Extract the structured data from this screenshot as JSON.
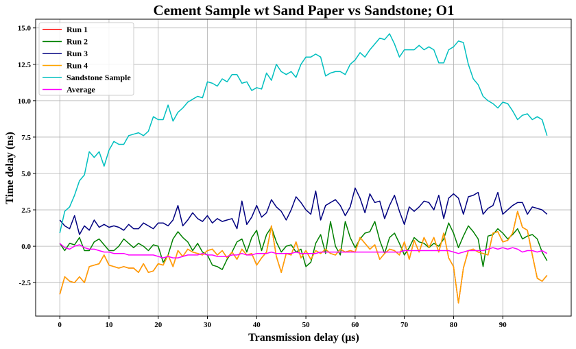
{
  "chart_data": {
    "type": "line",
    "title": "Cement Sample wt Sand Paper vs Sandstone; O1",
    "xlabel": "Transmission delay (μs)",
    "ylabel": "Time delay (ns)",
    "xlim": [
      -4.9,
      103.9
    ],
    "ylim": [
      -4.8,
      15.6
    ],
    "x_ticks": [
      0,
      10,
      20,
      30,
      40,
      50,
      60,
      70,
      80,
      90
    ],
    "y_ticks": [
      -2.5,
      0.0,
      2.5,
      5.0,
      7.5,
      10.0,
      12.5,
      15.0
    ],
    "x_tick_labels": [
      "0",
      "10",
      "20",
      "30",
      "40",
      "50",
      "60",
      "70",
      "80",
      "90"
    ],
    "y_tick_labels": [
      "-2.5",
      "0.0",
      "2.5",
      "5.0",
      "7.5",
      "10.0",
      "12.5",
      "15.0"
    ],
    "grid": true,
    "legend_position": "top-left",
    "series": [
      {
        "name": "Run 1",
        "color": "#ff0000",
        "x": [
          0,
          1,
          2,
          3,
          4,
          5,
          6,
          7,
          8,
          9,
          10,
          11,
          12,
          13,
          14,
          15,
          16,
          17,
          18,
          19,
          20,
          21,
          22,
          23,
          24,
          25,
          26,
          27,
          28,
          29,
          30,
          31,
          32,
          33,
          34,
          35,
          36,
          37,
          38,
          39,
          40,
          41,
          42,
          43,
          44,
          45,
          46,
          47,
          48,
          49,
          50,
          51,
          52,
          53,
          54,
          55,
          56,
          57,
          58,
          59,
          60,
          61,
          62,
          63,
          64,
          65,
          66,
          67,
          68,
          69,
          70,
          71,
          72,
          73,
          74,
          75,
          76,
          77,
          78,
          79,
          80,
          81,
          82,
          83,
          84,
          85,
          86,
          87,
          88,
          89,
          90,
          91,
          92,
          93,
          94,
          95,
          96,
          97,
          98,
          99
        ],
        "values": [
          -3.3,
          -2.1,
          -2.4,
          -2.5,
          -2.1,
          -2.5,
          -1.4,
          -1.3,
          -1.2,
          -0.6,
          -1.3,
          -1.4,
          -1.5,
          -1.4,
          -1.5,
          -1.5,
          -1.8,
          -1.2,
          -1.8,
          -1.7,
          -1.2,
          -1.3,
          -0.6,
          -1.4,
          -0.3,
          -0.7,
          -0.2,
          -0.4,
          -0.5,
          -0.6,
          -0.3,
          -0.2,
          -0.6,
          -0.3,
          -0.8,
          -0.4,
          -0.9,
          -0.2,
          -0.6,
          -0.5,
          -1.3,
          -0.8,
          -0.4,
          1.4,
          -0.7,
          -1.8,
          -0.5,
          -0.6,
          0.3,
          -0.8,
          -0.3,
          -0.9,
          -0.3,
          -0.5,
          -0.2,
          -0.5,
          -0.6,
          -0.2,
          -0.4,
          -0.3,
          -0.4,
          0.6,
          0.2,
          -0.2,
          0.1,
          -0.9,
          -0.5,
          -0.2,
          -0.3,
          -0.6,
          0.3,
          -0.9,
          0.4,
          -0.4,
          0.6,
          -0.1,
          0.6,
          -0.4,
          0.9,
          -0.8,
          -1.4,
          -3.9,
          -1.5,
          -0.3,
          -0.2,
          -0.4,
          -0.5,
          -0.6,
          0.9,
          1.0,
          0.3,
          0.4,
          0.9,
          2.4,
          1.3,
          1.1,
          -0.6,
          -2.2,
          -2.4,
          -2.0
        ]
      },
      {
        "name": "Run 2",
        "color": "#008000",
        "x": [
          0,
          1,
          2,
          3,
          4,
          5,
          6,
          7,
          8,
          9,
          10,
          11,
          12,
          13,
          14,
          15,
          16,
          17,
          18,
          19,
          20,
          21,
          22,
          23,
          24,
          25,
          26,
          27,
          28,
          29,
          30,
          31,
          32,
          33,
          34,
          35,
          36,
          37,
          38,
          39,
          40,
          41,
          42,
          43,
          44,
          45,
          46,
          47,
          48,
          49,
          50,
          51,
          52,
          53,
          54,
          55,
          56,
          57,
          58,
          59,
          60,
          61,
          62,
          63,
          64,
          65,
          66,
          67,
          68,
          69,
          70,
          71,
          72,
          73,
          74,
          75,
          76,
          77,
          78,
          79,
          80,
          81,
          82,
          83,
          84,
          85,
          86,
          87,
          88,
          89,
          90,
          91,
          92,
          93,
          94,
          95,
          96,
          97,
          98,
          99
        ],
        "values": [
          0.2,
          -0.3,
          0.2,
          0.1,
          0.6,
          -0.3,
          -0.3,
          0.3,
          0.5,
          0.1,
          -0.3,
          -0.3,
          0.0,
          0.5,
          0.2,
          -0.1,
          0.2,
          0.0,
          -0.3,
          0.1,
          0.0,
          -1.1,
          -0.6,
          0.5,
          1.0,
          0.6,
          0.3,
          -0.3,
          0.2,
          -0.4,
          -0.6,
          -1.3,
          -1.4,
          -1.6,
          -0.9,
          -0.4,
          0.3,
          0.5,
          -0.4,
          0.6,
          1.1,
          -0.3,
          0.8,
          1.3,
          0.3,
          -0.4,
          0.0,
          0.1,
          -0.4,
          -0.2,
          -1.4,
          -1.1,
          0.2,
          0.8,
          -0.5,
          1.7,
          0.0,
          -0.6,
          1.7,
          0.6,
          -0.1,
          0.5,
          0.9,
          1.0,
          1.7,
          0.4,
          -0.5,
          0.6,
          0.9,
          0.2,
          -0.6,
          -0.1,
          0.6,
          0.3,
          0.2,
          -0.1,
          0.2,
          0.0,
          0.5,
          1.6,
          0.9,
          -0.1,
          0.7,
          1.4,
          1.0,
          0.5,
          -1.4,
          0.7,
          0.8,
          1.2,
          0.9,
          0.5,
          0.8,
          1.2,
          0.5,
          0.7,
          0.8,
          0.5,
          -0.4,
          -1.0
        ]
      },
      {
        "name": "Run 3",
        "color": "#000080",
        "x": [
          0,
          1,
          2,
          3,
          4,
          5,
          6,
          7,
          8,
          9,
          10,
          11,
          12,
          13,
          14,
          15,
          16,
          17,
          18,
          19,
          20,
          21,
          22,
          23,
          24,
          25,
          26,
          27,
          28,
          29,
          30,
          31,
          32,
          33,
          34,
          35,
          36,
          37,
          38,
          39,
          40,
          41,
          42,
          43,
          44,
          45,
          46,
          47,
          48,
          49,
          50,
          51,
          52,
          53,
          54,
          55,
          56,
          57,
          58,
          59,
          60,
          61,
          62,
          63,
          64,
          65,
          66,
          67,
          68,
          69,
          70,
          71,
          72,
          73,
          74,
          75,
          76,
          77,
          78,
          79,
          80,
          81,
          82,
          83,
          84,
          85,
          86,
          87,
          88,
          89,
          90,
          91,
          92,
          93,
          94,
          95,
          96,
          97,
          98,
          99
        ],
        "values": [
          1.8,
          1.4,
          1.2,
          2.1,
          0.8,
          1.4,
          1.1,
          1.8,
          1.3,
          1.5,
          1.3,
          1.4,
          1.3,
          1.1,
          1.5,
          1.2,
          1.2,
          1.6,
          1.4,
          1.2,
          1.6,
          1.6,
          1.4,
          1.8,
          2.8,
          1.4,
          1.8,
          2.3,
          1.9,
          1.7,
          2.1,
          1.6,
          1.9,
          1.7,
          1.8,
          1.9,
          1.2,
          3.1,
          1.5,
          2.0,
          2.8,
          2.0,
          2.3,
          3.2,
          2.7,
          2.4,
          1.8,
          2.5,
          3.4,
          3.0,
          2.5,
          2.2,
          3.8,
          1.8,
          2.8,
          3.0,
          3.2,
          2.8,
          2.1,
          2.7,
          4.0,
          3.3,
          2.3,
          3.6,
          3.0,
          3.1,
          1.9,
          2.8,
          3.5,
          2.4,
          1.5,
          2.7,
          2.4,
          2.7,
          3.1,
          3.0,
          2.5,
          3.5,
          1.9,
          3.3,
          3.6,
          3.3,
          2.2,
          3.4,
          3.5,
          3.7,
          2.2,
          2.6,
          2.8,
          3.7,
          2.2,
          2.5,
          2.8,
          3.0,
          3.0,
          2.2,
          2.7,
          2.6,
          2.5,
          2.2
        ]
      },
      {
        "name": "Run 4",
        "color": "#ffa500",
        "x": [
          0,
          1,
          2,
          3,
          4,
          5,
          6,
          7,
          8,
          9,
          10,
          11,
          12,
          13,
          14,
          15,
          16,
          17,
          18,
          19,
          20,
          21,
          22,
          23,
          24,
          25,
          26,
          27,
          28,
          29,
          30,
          31,
          32,
          33,
          34,
          35,
          36,
          37,
          38,
          39,
          40,
          41,
          42,
          43,
          44,
          45,
          46,
          47,
          48,
          49,
          50,
          51,
          52,
          53,
          54,
          55,
          56,
          57,
          58,
          59,
          60,
          61,
          62,
          63,
          64,
          65,
          66,
          67,
          68,
          69,
          70,
          71,
          72,
          73,
          74,
          75,
          76,
          77,
          78,
          79,
          80,
          81,
          82,
          83,
          84,
          85,
          86,
          87,
          88,
          89,
          90,
          91,
          92,
          93,
          94,
          95,
          96,
          97,
          98,
          99
        ],
        "values": [
          -3.3,
          -2.1,
          -2.4,
          -2.5,
          -2.1,
          -2.5,
          -1.4,
          -1.3,
          -1.2,
          -0.6,
          -1.3,
          -1.4,
          -1.5,
          -1.4,
          -1.5,
          -1.5,
          -1.8,
          -1.2,
          -1.8,
          -1.7,
          -1.2,
          -1.3,
          -0.6,
          -1.4,
          -0.3,
          -0.7,
          -0.2,
          -0.4,
          -0.5,
          -0.6,
          -0.3,
          -0.2,
          -0.6,
          -0.3,
          -0.8,
          -0.4,
          -0.9,
          -0.2,
          -0.6,
          -0.5,
          -1.3,
          -0.8,
          -0.4,
          1.4,
          -0.7,
          -1.8,
          -0.5,
          -0.6,
          0.3,
          -0.8,
          -0.3,
          -0.9,
          -0.3,
          -0.5,
          -0.2,
          -0.5,
          -0.6,
          -0.2,
          -0.4,
          -0.3,
          -0.4,
          0.6,
          0.2,
          -0.2,
          0.1,
          -0.9,
          -0.5,
          -0.2,
          -0.3,
          -0.6,
          0.3,
          -0.9,
          0.4,
          -0.4,
          0.6,
          -0.1,
          0.6,
          -0.4,
          0.9,
          -0.8,
          -1.4,
          -3.9,
          -1.5,
          -0.3,
          -0.2,
          -0.4,
          -0.5,
          -0.6,
          0.9,
          1.0,
          0.3,
          0.4,
          0.9,
          2.4,
          1.3,
          1.1,
          -0.6,
          -2.2,
          -2.4,
          -2.0
        ]
      },
      {
        "name": "Sandstone Sample",
        "color": "#00bfbf",
        "x": [
          0,
          1,
          2,
          3,
          4,
          5,
          6,
          7,
          8,
          9,
          10,
          11,
          12,
          13,
          14,
          15,
          16,
          17,
          18,
          19,
          20,
          21,
          22,
          23,
          24,
          25,
          26,
          27,
          28,
          29,
          30,
          31,
          32,
          33,
          34,
          35,
          36,
          37,
          38,
          39,
          40,
          41,
          42,
          43,
          44,
          45,
          46,
          47,
          48,
          49,
          50,
          51,
          52,
          53,
          54,
          55,
          56,
          57,
          58,
          59,
          60,
          61,
          62,
          63,
          64,
          65,
          66,
          67,
          68,
          69,
          70,
          71,
          72,
          73,
          74,
          75,
          76,
          77,
          78,
          79,
          80,
          81,
          82,
          83,
          84,
          85,
          86,
          87,
          88,
          89,
          90,
          91,
          92,
          93,
          94,
          95,
          96,
          97,
          98,
          99
        ],
        "values": [
          0.9,
          2.4,
          2.7,
          3.5,
          4.5,
          4.9,
          6.5,
          6.1,
          6.5,
          5.5,
          6.6,
          7.2,
          7.0,
          7.0,
          7.6,
          7.7,
          7.8,
          7.6,
          7.9,
          8.9,
          8.7,
          8.7,
          9.7,
          8.6,
          9.2,
          9.5,
          9.9,
          10.1,
          10.3,
          10.2,
          11.3,
          11.2,
          11.0,
          11.5,
          11.3,
          11.8,
          11.8,
          11.2,
          11.3,
          10.7,
          10.9,
          10.8,
          11.9,
          11.4,
          12.5,
          12.0,
          11.8,
          12.0,
          11.6,
          12.5,
          13.0,
          13.0,
          13.2,
          13.0,
          11.7,
          11.9,
          12.0,
          12.0,
          11.8,
          12.5,
          12.8,
          13.3,
          13.0,
          13.5,
          13.9,
          14.3,
          14.2,
          14.6,
          13.9,
          13.0,
          13.5,
          13.5,
          13.5,
          13.8,
          13.5,
          13.7,
          13.5,
          12.6,
          12.6,
          13.5,
          13.7,
          14.1,
          14.0,
          12.5,
          11.5,
          11.1,
          10.3,
          10.0,
          9.8,
          9.5,
          9.9,
          9.8,
          9.3,
          8.7,
          9.0,
          9.1,
          8.7,
          8.9,
          8.7,
          7.6
        ]
      },
      {
        "name": "Average",
        "color": "#ff00ff",
        "x": [
          0,
          1,
          2,
          3,
          4,
          5,
          6,
          7,
          8,
          9,
          10,
          11,
          12,
          13,
          14,
          15,
          16,
          17,
          18,
          19,
          20,
          21,
          22,
          23,
          24,
          25,
          26,
          27,
          28,
          29,
          30,
          31,
          32,
          33,
          34,
          35,
          36,
          37,
          38,
          39,
          40,
          41,
          42,
          43,
          44,
          45,
          46,
          47,
          48,
          49,
          50,
          51,
          52,
          53,
          54,
          55,
          56,
          57,
          58,
          59,
          60,
          61,
          62,
          63,
          64,
          65,
          66,
          67,
          68,
          69,
          70,
          71,
          72,
          73,
          74,
          75,
          76,
          77,
          78,
          79,
          80,
          81,
          82,
          83,
          84,
          85,
          86,
          87,
          88,
          89,
          90,
          91,
          92,
          93,
          94,
          95,
          96,
          97,
          98,
          99
        ],
        "values": [
          0.2,
          -0.1,
          -0.2,
          0.0,
          0.1,
          -0.1,
          -0.2,
          -0.2,
          -0.3,
          -0.4,
          -0.4,
          -0.5,
          -0.5,
          -0.5,
          -0.6,
          -0.6,
          -0.6,
          -0.6,
          -0.6,
          -0.6,
          -0.7,
          -0.8,
          -0.7,
          -0.8,
          -0.8,
          -0.7,
          -0.6,
          -0.6,
          -0.6,
          -0.5,
          -0.6,
          -0.6,
          -0.7,
          -0.7,
          -0.7,
          -0.6,
          -0.6,
          -0.5,
          -0.6,
          -0.6,
          -0.5,
          -0.5,
          -0.5,
          -0.4,
          -0.5,
          -0.5,
          -0.5,
          -0.5,
          -0.4,
          -0.5,
          -0.5,
          -0.5,
          -0.5,
          -0.4,
          -0.4,
          -0.4,
          -0.4,
          -0.4,
          -0.4,
          -0.4,
          -0.4,
          -0.4,
          -0.4,
          -0.4,
          -0.4,
          -0.4,
          -0.4,
          -0.4,
          -0.4,
          -0.4,
          -0.3,
          -0.3,
          -0.3,
          -0.3,
          -0.3,
          -0.3,
          -0.3,
          -0.3,
          -0.3,
          -0.3,
          -0.4,
          -0.5,
          -0.4,
          -0.3,
          -0.3,
          -0.3,
          -0.3,
          -0.2,
          -0.1,
          -0.2,
          -0.1,
          -0.2,
          -0.1,
          -0.2,
          -0.4,
          -0.3,
          -0.3,
          -0.4,
          -0.3,
          -0.5
        ]
      }
    ]
  }
}
